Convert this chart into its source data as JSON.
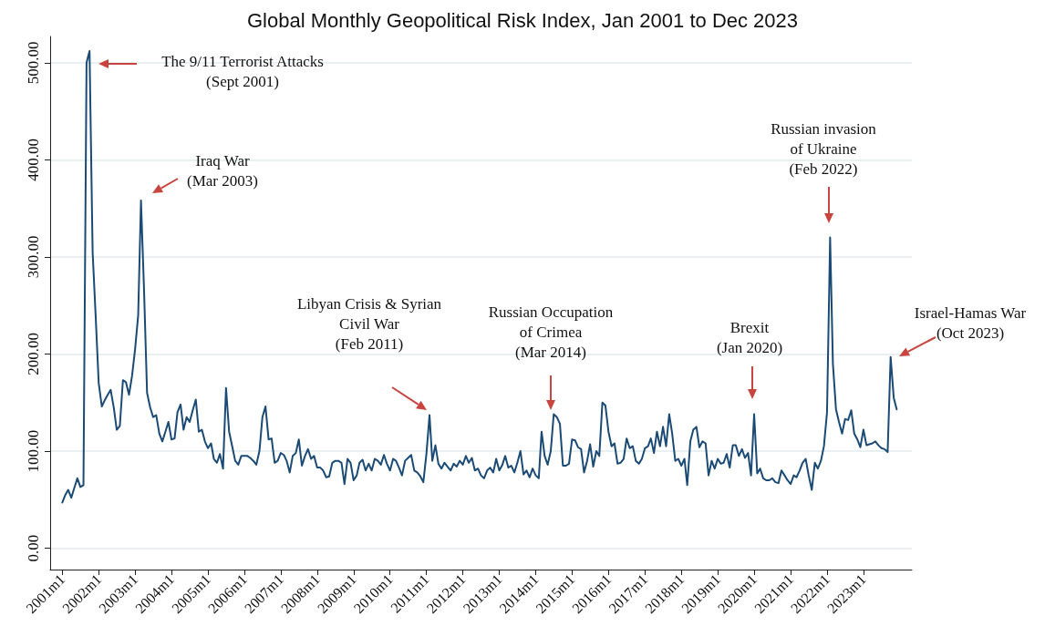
{
  "chart_data": {
    "type": "line",
    "title": "Global Monthly Geopolitical Risk Index, Jan 2001 to Dec 2023",
    "x": [
      "2001-01",
      "2001-02",
      "2001-03",
      "2001-04",
      "2001-05",
      "2001-06",
      "2001-07",
      "2001-08",
      "2001-09",
      "2001-10",
      "2001-11",
      "2001-12",
      "2002-01",
      "2002-02",
      "2002-03",
      "2002-04",
      "2002-05",
      "2002-06",
      "2002-07",
      "2002-08",
      "2002-09",
      "2002-10",
      "2002-11",
      "2002-12",
      "2003-01",
      "2003-02",
      "2003-03",
      "2003-04",
      "2003-05",
      "2003-06",
      "2003-07",
      "2003-08",
      "2003-09",
      "2003-10",
      "2003-11",
      "2003-12",
      "2004-01",
      "2004-02",
      "2004-03",
      "2004-04",
      "2004-05",
      "2004-06",
      "2004-07",
      "2004-08",
      "2004-09",
      "2004-10",
      "2004-11",
      "2004-12",
      "2005-01",
      "2005-02",
      "2005-03",
      "2005-04",
      "2005-05",
      "2005-06",
      "2005-07",
      "2005-08",
      "2005-09",
      "2005-10",
      "2005-11",
      "2005-12",
      "2006-01",
      "2006-02",
      "2006-03",
      "2006-04",
      "2006-05",
      "2006-06",
      "2006-07",
      "2006-08",
      "2006-09",
      "2006-10",
      "2006-11",
      "2006-12",
      "2007-01",
      "2007-02",
      "2007-03",
      "2007-04",
      "2007-05",
      "2007-06",
      "2007-07",
      "2007-08",
      "2007-09",
      "2007-10",
      "2007-11",
      "2007-12",
      "2008-01",
      "2008-02",
      "2008-03",
      "2008-04",
      "2008-05",
      "2008-06",
      "2008-07",
      "2008-08",
      "2008-09",
      "2008-10",
      "2008-11",
      "2008-12",
      "2009-01",
      "2009-02",
      "2009-03",
      "2009-04",
      "2009-05",
      "2009-06",
      "2009-07",
      "2009-08",
      "2009-09",
      "2009-10",
      "2009-11",
      "2009-12",
      "2010-01",
      "2010-02",
      "2010-03",
      "2010-04",
      "2010-05",
      "2010-06",
      "2010-07",
      "2010-08",
      "2010-09",
      "2010-10",
      "2010-11",
      "2010-12",
      "2011-01",
      "2011-02",
      "2011-03",
      "2011-04",
      "2011-05",
      "2011-06",
      "2011-07",
      "2011-08",
      "2011-09",
      "2011-10",
      "2011-11",
      "2011-12",
      "2012-01",
      "2012-02",
      "2012-03",
      "2012-04",
      "2012-05",
      "2012-06",
      "2012-07",
      "2012-08",
      "2012-09",
      "2012-10",
      "2012-11",
      "2012-12",
      "2013-01",
      "2013-02",
      "2013-03",
      "2013-04",
      "2013-05",
      "2013-06",
      "2013-07",
      "2013-08",
      "2013-09",
      "2013-10",
      "2013-11",
      "2013-12",
      "2014-01",
      "2014-02",
      "2014-03",
      "2014-04",
      "2014-05",
      "2014-06",
      "2014-07",
      "2014-08",
      "2014-09",
      "2014-10",
      "2014-11",
      "2014-12",
      "2015-01",
      "2015-02",
      "2015-03",
      "2015-04",
      "2015-05",
      "2015-06",
      "2015-07",
      "2015-08",
      "2015-09",
      "2015-10",
      "2015-11",
      "2015-12",
      "2016-01",
      "2016-02",
      "2016-03",
      "2016-04",
      "2016-05",
      "2016-06",
      "2016-07",
      "2016-08",
      "2016-09",
      "2016-10",
      "2016-11",
      "2016-12",
      "2017-01",
      "2017-02",
      "2017-03",
      "2017-04",
      "2017-05",
      "2017-06",
      "2017-07",
      "2017-08",
      "2017-09",
      "2017-10",
      "2017-11",
      "2017-12",
      "2018-01",
      "2018-02",
      "2018-03",
      "2018-04",
      "2018-05",
      "2018-06",
      "2018-07",
      "2018-08",
      "2018-09",
      "2018-10",
      "2018-11",
      "2018-12",
      "2019-01",
      "2019-02",
      "2019-03",
      "2019-04",
      "2019-05",
      "2019-06",
      "2019-07",
      "2019-08",
      "2019-09",
      "2019-10",
      "2019-11",
      "2019-12",
      "2020-01",
      "2020-02",
      "2020-03",
      "2020-04",
      "2020-05",
      "2020-06",
      "2020-07",
      "2020-08",
      "2020-09",
      "2020-10",
      "2020-11",
      "2020-12",
      "2021-01",
      "2021-02",
      "2021-03",
      "2021-04",
      "2021-05",
      "2021-06",
      "2021-07",
      "2021-08",
      "2021-09",
      "2021-10",
      "2021-11",
      "2021-12",
      "2022-01",
      "2022-02",
      "2022-03",
      "2022-04",
      "2022-05",
      "2022-06",
      "2022-07",
      "2022-08",
      "2022-09",
      "2022-10",
      "2022-11",
      "2022-12",
      "2023-01",
      "2023-02",
      "2023-03",
      "2023-04",
      "2023-05",
      "2023-06",
      "2023-07",
      "2023-08",
      "2023-09",
      "2023-10",
      "2023-11",
      "2023-12"
    ],
    "series": [
      {
        "color": "#1b4a75",
        "values": [
          47,
          55,
          60,
          52,
          62,
          72,
          63,
          65,
          500,
          512,
          305,
          240,
          170,
          146,
          152,
          158,
          163,
          145,
          122,
          126,
          173,
          171,
          158,
          177,
          205,
          240,
          358,
          265,
          160,
          145,
          135,
          137,
          118,
          110,
          120,
          130,
          112,
          113,
          140,
          148,
          122,
          135,
          130,
          142,
          153,
          120,
          122,
          110,
          103,
          108,
          92,
          88,
          97,
          82,
          165,
          120,
          105,
          90,
          86,
          95,
          95,
          95,
          93,
          90,
          86,
          100,
          135,
          146,
          112,
          113,
          88,
          90,
          98,
          96,
          90,
          78,
          95,
          98,
          112,
          85,
          95,
          102,
          92,
          95,
          83,
          83,
          80,
          73,
          74,
          88,
          90,
          90,
          88,
          66,
          92,
          88,
          70,
          75,
          88,
          91,
          80,
          87,
          80,
          92,
          90,
          86,
          96,
          87,
          80,
          92,
          90,
          83,
          75,
          90,
          93,
          96,
          80,
          78,
          74,
          68,
          97,
          137,
          90,
          106,
          87,
          82,
          88,
          84,
          80,
          87,
          84,
          90,
          86,
          95,
          88,
          93,
          80,
          82,
          75,
          72,
          80,
          83,
          78,
          92,
          80,
          86,
          95,
          83,
          85,
          78,
          88,
          100,
          76,
          80,
          73,
          82,
          75,
          72,
          120,
          95,
          86,
          100,
          138,
          135,
          128,
          85,
          85,
          87,
          112,
          111,
          104,
          102,
          78,
          90,
          107,
          84,
          100,
          95,
          150,
          147,
          120,
          105,
          108,
          87,
          88,
          92,
          113,
          103,
          105,
          90,
          87,
          92,
          103,
          105,
          113,
          98,
          120,
          105,
          125,
          105,
          138,
          118,
          90,
          92,
          85,
          92,
          65,
          110,
          122,
          125,
          104,
          110,
          108,
          75,
          90,
          82,
          92,
          87,
          88,
          97,
          83,
          106,
          106,
          95,
          102,
          93,
          98,
          75,
          138,
          77,
          82,
          72,
          70,
          70,
          72,
          68,
          67,
          80,
          75,
          70,
          66,
          75,
          73,
          80,
          88,
          92,
          75,
          60,
          88,
          82,
          90,
          105,
          140,
          320,
          190,
          143,
          130,
          118,
          133,
          132,
          142,
          118,
          112,
          104,
          122,
          106,
          107,
          108,
          110,
          106,
          103,
          102,
          99,
          197,
          155,
          143
        ]
      }
    ],
    "xlim": [
      "2000-09",
      "2024-05"
    ],
    "xticks": [
      {
        "value": "2001-01",
        "label": "2001m1"
      },
      {
        "value": "2002-01",
        "label": "2002m1"
      },
      {
        "value": "2003-01",
        "label": "2003m1"
      },
      {
        "value": "2004-01",
        "label": "2004m1"
      },
      {
        "value": "2005-01",
        "label": "2005m1"
      },
      {
        "value": "2006-01",
        "label": "2006m1"
      },
      {
        "value": "2007-01",
        "label": "2007m1"
      },
      {
        "value": "2008-01",
        "label": "2008m1"
      },
      {
        "value": "2009-01",
        "label": "2009m1"
      },
      {
        "value": "2010-01",
        "label": "2010m1"
      },
      {
        "value": "2011-01",
        "label": "2011m1"
      },
      {
        "value": "2012-01",
        "label": "2012m1"
      },
      {
        "value": "2013-01",
        "label": "2013m1"
      },
      {
        "value": "2014-01",
        "label": "2014m1"
      },
      {
        "value": "2015-01",
        "label": "2015m1"
      },
      {
        "value": "2016-01",
        "label": "2016m1"
      },
      {
        "value": "2017-01",
        "label": "2017m1"
      },
      {
        "value": "2018-01",
        "label": "2018m1"
      },
      {
        "value": "2019-01",
        "label": "2019m1"
      },
      {
        "value": "2020-01",
        "label": "2020m1"
      },
      {
        "value": "2021-01",
        "label": "2021m1"
      },
      {
        "value": "2022-01",
        "label": "2022m1"
      },
      {
        "value": "2023-01",
        "label": "2023m1"
      }
    ],
    "ylim": [
      -22,
      527
    ],
    "yticks": [
      {
        "value": 0,
        "label": "0.00"
      },
      {
        "value": 100,
        "label": "100.00"
      },
      {
        "value": 200,
        "label": "200.00"
      },
      {
        "value": 300,
        "label": "300.00"
      },
      {
        "value": 400,
        "label": "400.00"
      },
      {
        "value": 500,
        "label": "500.00"
      }
    ],
    "grid": "y",
    "marker": "none",
    "line_style": "solid",
    "annotations": [
      "The 9/11 Terrorist Attacks\n(Sept 2001)",
      "Iraq War\n(Mar 2003)",
      "Libyan Crisis & Syrian\nCivil War\n(Feb 2011)",
      "Russian Occupation\nof Crimea\n(Mar 2014)",
      "Brexit\n(Jan 2020)",
      "Russian invasion\nof Ukraine\n(Feb 2022)",
      "Israel-Hamas War\n(Oct 2023)"
    ]
  }
}
